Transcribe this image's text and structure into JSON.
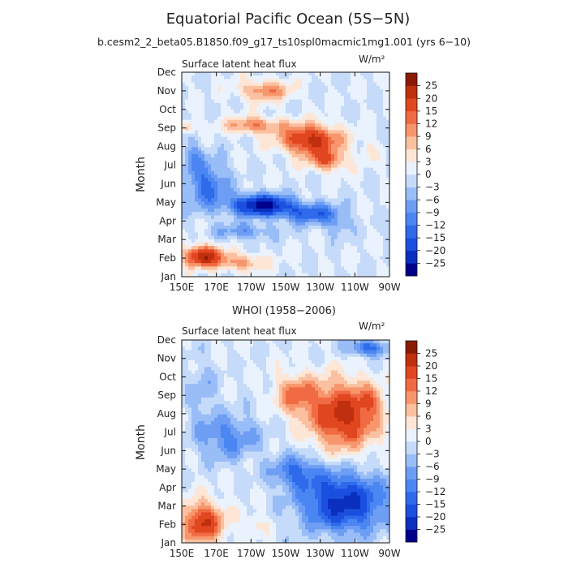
{
  "figure": {
    "title": "Equatorial Pacific Ocean (5S−5N)",
    "subtitle": "b.cesm2_2_beta05.B1850.f09_g17_ts10spl0macmic1mg1.001 (yrs 6−10)"
  },
  "colors": {
    "levels": [
      -25,
      -20,
      -15,
      -12,
      -9,
      -6,
      -3,
      0,
      3,
      6,
      9,
      12,
      15,
      20,
      25
    ],
    "labels": [
      "25",
      "20",
      "15",
      "12",
      "9",
      "6",
      "3",
      "0",
      "−3",
      "−6",
      "−9",
      "−12",
      "−15",
      "−20",
      "−25"
    ],
    "palette": [
      "#00008b",
      "#0b2fbf",
      "#1a4fe0",
      "#2f6aeb",
      "#4b86f2",
      "#6e9ef4",
      "#99bdf7",
      "#c6dbfa",
      "#eaf2fd",
      "#fde6d6",
      "#fbc0a0",
      "#f7966c",
      "#f06b43",
      "#e04620",
      "#c0300e",
      "#8b1a04"
    ]
  },
  "chart_data": [
    {
      "type": "heatmap",
      "title": "Surface latent heat flux",
      "units": "W/m²",
      "ylabel": "Month",
      "x_ticks": [
        "150E",
        "170E",
        "170W",
        "150W",
        "130W",
        "110W",
        "90W"
      ],
      "y_ticks": [
        "Jan",
        "Feb",
        "Mar",
        "Apr",
        "May",
        "Jun",
        "Jul",
        "Aug",
        "Sep",
        "Oct",
        "Nov",
        "Dec"
      ],
      "x_range_deg": [
        150,
        270
      ],
      "y_range_month": [
        1,
        12
      ],
      "legend": "right",
      "features": [
        {
          "x": 0.1,
          "y": 0.1,
          "sx": 0.09,
          "sy": 0.05,
          "amp": 24
        },
        {
          "x": 0.28,
          "y": 0.07,
          "sx": 0.12,
          "sy": 0.04,
          "amp": 10
        },
        {
          "x": 0.62,
          "y": 0.67,
          "sx": 0.14,
          "sy": 0.07,
          "amp": 22
        },
        {
          "x": 0.7,
          "y": 0.57,
          "sx": 0.09,
          "sy": 0.05,
          "amp": 14
        },
        {
          "x": 0.35,
          "y": 0.74,
          "sx": 0.14,
          "sy": 0.04,
          "amp": 12
        },
        {
          "x": 0.4,
          "y": 0.91,
          "sx": 0.12,
          "sy": 0.05,
          "amp": 12
        },
        {
          "x": 0.03,
          "y": 0.73,
          "sx": 0.03,
          "sy": 0.03,
          "amp": 10
        },
        {
          "x": 0.9,
          "y": 0.62,
          "sx": 0.04,
          "sy": 0.05,
          "amp": 4
        },
        {
          "x": 0.38,
          "y": 0.35,
          "sx": 0.14,
          "sy": 0.05,
          "amp": -27
        },
        {
          "x": 0.62,
          "y": 0.31,
          "sx": 0.14,
          "sy": 0.05,
          "amp": -14
        },
        {
          "x": 0.12,
          "y": 0.45,
          "sx": 0.1,
          "sy": 0.12,
          "amp": -13
        },
        {
          "x": 0.3,
          "y": 0.22,
          "sx": 0.14,
          "sy": 0.04,
          "amp": -8
        },
        {
          "x": 0.75,
          "y": 0.25,
          "sx": 0.06,
          "sy": 0.06,
          "amp": -6
        },
        {
          "x": 0.05,
          "y": 0.6,
          "sx": 0.05,
          "sy": 0.08,
          "amp": -6
        }
      ]
    },
    {
      "type": "heatmap",
      "title": "Surface latent heat flux",
      "units": "W/m²",
      "ylabel": "Month",
      "x_ticks": [
        "150E",
        "170E",
        "170W",
        "150W",
        "130W",
        "110W",
        "90W"
      ],
      "y_ticks": [
        "Jan",
        "Feb",
        "Mar",
        "Apr",
        "May",
        "Jun",
        "Jul",
        "Aug",
        "Sep",
        "Oct",
        "Nov",
        "Dec"
      ],
      "x_range_deg": [
        150,
        270
      ],
      "y_range_month": [
        1,
        12
      ],
      "legend": "right",
      "features": [
        {
          "x": 0.78,
          "y": 0.63,
          "sx": 0.16,
          "sy": 0.16,
          "amp": 22
        },
        {
          "x": 0.55,
          "y": 0.73,
          "sx": 0.1,
          "sy": 0.1,
          "amp": 12
        },
        {
          "x": 0.92,
          "y": 0.7,
          "sx": 0.05,
          "sy": 0.06,
          "amp": 6
        },
        {
          "x": 0.1,
          "y": 0.1,
          "sx": 0.1,
          "sy": 0.1,
          "amp": 20
        },
        {
          "x": 0.35,
          "y": 0.09,
          "sx": 0.06,
          "sy": 0.05,
          "amp": 5
        },
        {
          "x": 0.78,
          "y": 0.2,
          "sx": 0.2,
          "sy": 0.14,
          "amp": -22
        },
        {
          "x": 0.55,
          "y": 0.35,
          "sx": 0.12,
          "sy": 0.08,
          "amp": -12
        },
        {
          "x": 0.22,
          "y": 0.52,
          "sx": 0.15,
          "sy": 0.11,
          "amp": -10
        },
        {
          "x": 0.9,
          "y": 0.96,
          "sx": 0.1,
          "sy": 0.04,
          "amp": -14
        },
        {
          "x": 0.1,
          "y": 0.75,
          "sx": 0.07,
          "sy": 0.15,
          "amp": -5
        }
      ]
    }
  ],
  "panels": [
    {
      "heading": "",
      "title": "Surface latent heat flux",
      "units": "W/m²",
      "ylabel": "Month"
    },
    {
      "heading": "WHOI (1958−2006)",
      "title": "Surface latent heat flux",
      "units": "W/m²",
      "ylabel": "Month"
    }
  ]
}
